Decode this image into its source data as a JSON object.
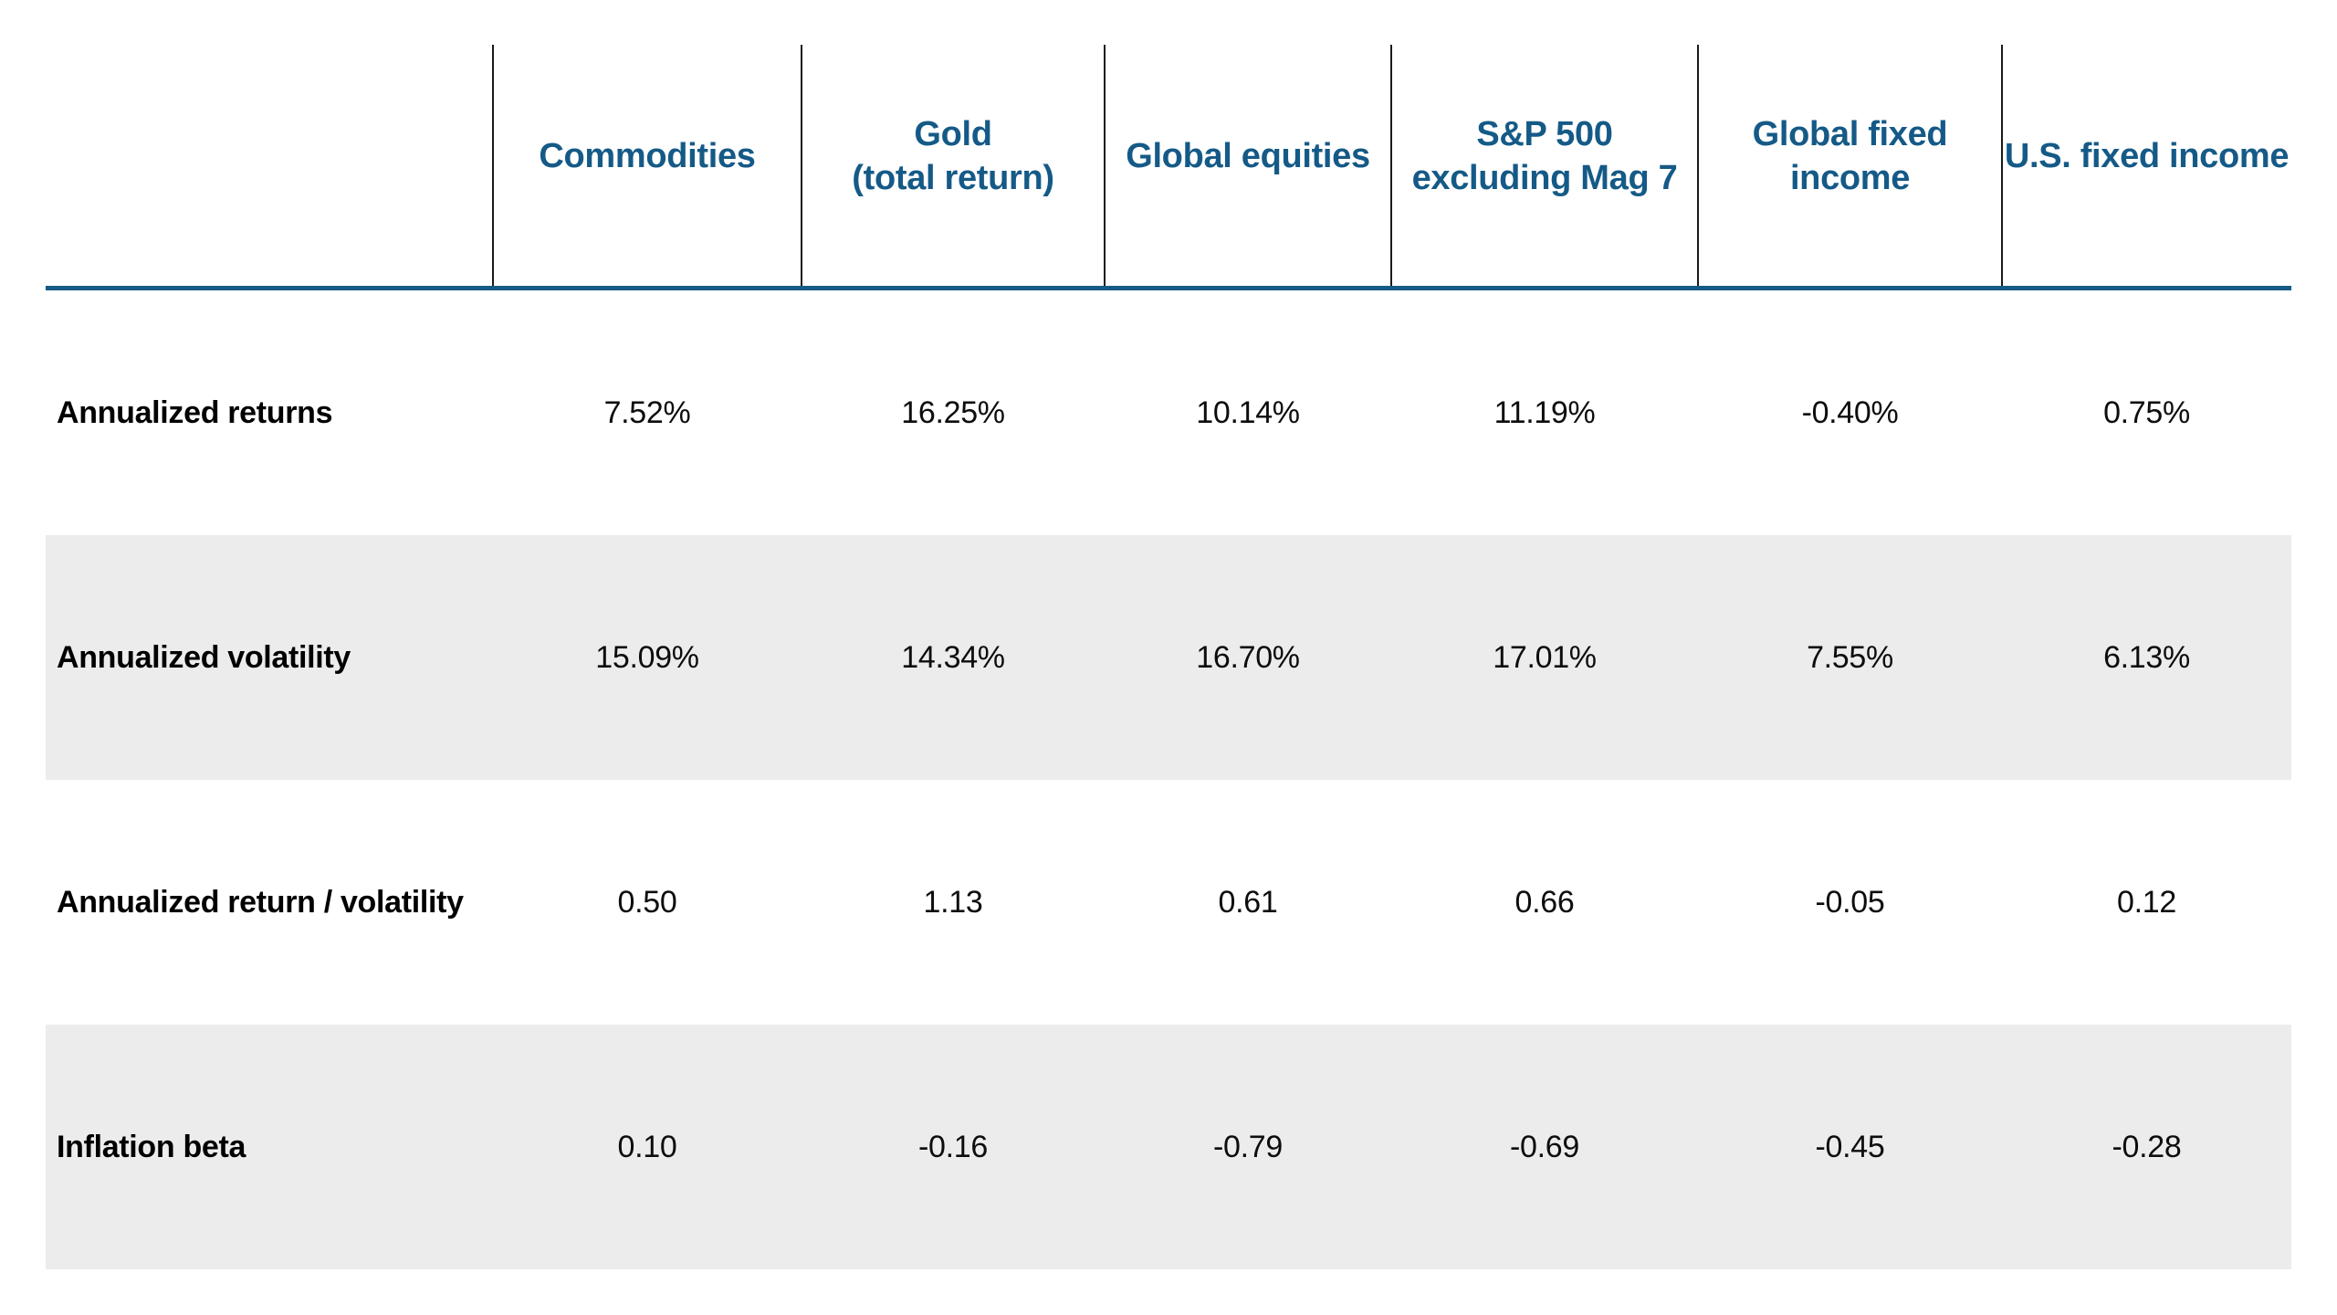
{
  "colors": {
    "accent_blue": "#155A87",
    "stripe_gray": "#ECECEC",
    "divider_black": "#1A1A1A",
    "text_black": "#000000",
    "background": "#FFFFFF"
  },
  "table": {
    "columns": [
      {
        "line1": "Commodities",
        "line2": ""
      },
      {
        "line1": "Gold",
        "line2": "(total return)"
      },
      {
        "line1": "Global equities",
        "line2": ""
      },
      {
        "line1": "S&P 500",
        "line2": "excluding Mag 7"
      },
      {
        "line1": "Global fixed",
        "line2": "income"
      },
      {
        "line1": "U.S. fixed income",
        "line2": ""
      }
    ],
    "rows": [
      {
        "label": "Annualized returns",
        "values": [
          "7.52%",
          "16.25%",
          "10.14%",
          "11.19%",
          "-0.40%",
          "0.75%"
        ]
      },
      {
        "label": "Annualized volatility",
        "values": [
          "15.09%",
          "14.34%",
          "16.70%",
          "17.01%",
          "7.55%",
          "6.13%"
        ]
      },
      {
        "label": "Annualized return / volatility",
        "values": [
          "0.50",
          "1.13",
          "0.61",
          "0.66",
          "-0.05",
          "0.12"
        ]
      },
      {
        "label": "Inflation beta",
        "values": [
          "0.10",
          "-0.16",
          "-0.79",
          "-0.69",
          "-0.45",
          "-0.28"
        ]
      }
    ]
  },
  "chart_data": {
    "type": "table",
    "columns": [
      "Commodities",
      "Gold (total return)",
      "Global equities",
      "S&P 500 excluding Mag 7",
      "Global fixed income",
      "U.S. fixed income"
    ],
    "row_metrics": [
      "Annualized returns",
      "Annualized volatility",
      "Annualized return / volatility",
      "Inflation beta"
    ],
    "rows": [
      {
        "metric": "Annualized returns",
        "unit": "percent",
        "values": [
          7.52,
          16.25,
          10.14,
          11.19,
          -0.4,
          0.75
        ]
      },
      {
        "metric": "Annualized volatility",
        "unit": "percent",
        "values": [
          15.09,
          14.34,
          16.7,
          17.01,
          7.55,
          6.13
        ]
      },
      {
        "metric": "Annualized return / volatility",
        "unit": "ratio",
        "values": [
          0.5,
          1.13,
          0.61,
          0.66,
          -0.05,
          0.12
        ]
      },
      {
        "metric": "Inflation beta",
        "unit": "beta",
        "values": [
          0.1,
          -0.16,
          -0.79,
          -0.69,
          -0.45,
          -0.28
        ]
      }
    ],
    "layout_hints": {
      "striped_rows": [
        "Annualized volatility",
        "Inflation beta"
      ],
      "header_underline_color": "#155A87",
      "column_dividers": true
    }
  }
}
